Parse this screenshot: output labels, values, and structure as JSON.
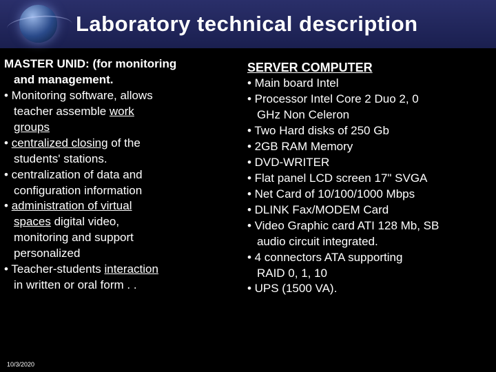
{
  "header": {
    "title": "Laboratory technical description"
  },
  "left": {
    "lead1": "MASTER UNID: (for monitoring",
    "lead2_indent": "and management.",
    "b1a": "• Monitoring software, allows",
    "b1b": "teacher assemble ",
    "b1b_u": "work",
    "b1c_u": "groups",
    "b2a": "• ",
    "b2a_u": "centralized closing",
    "b2a2": " of the",
    "b2b": "students' stations.",
    "b3a": "• centralization of data and",
    "b3b": "configuration information",
    "b4a": "• ",
    "b4a_u": "administration of virtual",
    "b4b_u": "spaces",
    "b4b2": " digital video,",
    "b4c": "monitoring and support",
    "b4d": "personalized",
    "b5a": "• Teacher-students ",
    "b5a_u": "interaction",
    "b5b": "in written or oral form .  ."
  },
  "right": {
    "heading": "SERVER COMPUTER",
    "r1": "• Main board Intel",
    "r2a": "• Processor Intel Core 2 Duo 2, 0",
    "r2b": "GHz Non Celeron",
    "r3": "• Two Hard disks of 250 Gb",
    "r4": "• 2GB RAM Memory",
    "r5": "• DVD-WRITER",
    "r6": "• Flat panel LCD screen 17\" SVGA",
    "r7": "• Net Card of 10/100/1000 Mbps",
    "r8": "• DLINK Fax/MODEM Card",
    "r9a": "• Video Graphic card ATI 128 Mb, SB",
    "r9b": "audio circuit integrated.",
    "r10a": "• 4 connectors ATA supporting",
    "r10b": "RAID 0, 1, 10",
    "r11": "• UPS (1500 VA)."
  },
  "footer": {
    "date": "10/3/2020"
  }
}
